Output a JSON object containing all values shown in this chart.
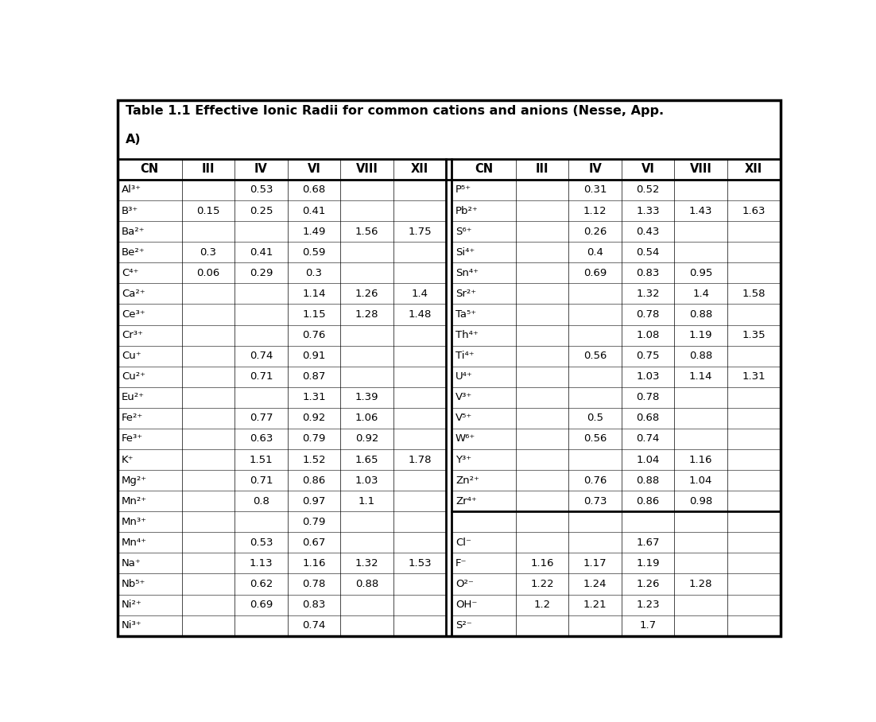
{
  "title_line1": "Table 1.1 Effective Ionic Radii for common cations and anions (Nesse, App.",
  "title_line2": "A)",
  "left_headers": [
    "CN",
    "III",
    "IV",
    "VI",
    "VIII",
    "XII"
  ],
  "right_headers": [
    "CN",
    "III",
    "IV",
    "VI",
    "VIII",
    "XII"
  ],
  "left_data": [
    [
      "Al³⁺",
      "",
      "0.53",
      "0.68",
      "",
      ""
    ],
    [
      "B³⁺",
      "0.15",
      "0.25",
      "0.41",
      "",
      ""
    ],
    [
      "Ba²⁺",
      "",
      "",
      "1.49",
      "1.56",
      "1.75"
    ],
    [
      "Be²⁺",
      "0.3",
      "0.41",
      "0.59",
      "",
      ""
    ],
    [
      "C⁴⁺",
      "0.06",
      "0.29",
      "0.3",
      "",
      ""
    ],
    [
      "Ca²⁺",
      "",
      "",
      "1.14",
      "1.26",
      "1.4"
    ],
    [
      "Ce³⁺",
      "",
      "",
      "1.15",
      "1.28",
      "1.48"
    ],
    [
      "Cr³⁺",
      "",
      "",
      "0.76",
      "",
      ""
    ],
    [
      "Cu⁺",
      "",
      "0.74",
      "0.91",
      "",
      ""
    ],
    [
      "Cu²⁺",
      "",
      "0.71",
      "0.87",
      "",
      ""
    ],
    [
      "Eu²⁺",
      "",
      "",
      "1.31",
      "1.39",
      ""
    ],
    [
      "Fe²⁺",
      "",
      "0.77",
      "0.92",
      "1.06",
      ""
    ],
    [
      "Fe³⁺",
      "",
      "0.63",
      "0.79",
      "0.92",
      ""
    ],
    [
      "K⁺",
      "",
      "1.51",
      "1.52",
      "1.65",
      "1.78"
    ],
    [
      "Mg²⁺",
      "",
      "0.71",
      "0.86",
      "1.03",
      ""
    ],
    [
      "Mn²⁺",
      "",
      "0.8",
      "0.97",
      "1.1",
      ""
    ],
    [
      "Mn³⁺",
      "",
      "",
      "0.79",
      "",
      ""
    ],
    [
      "Mn⁴⁺",
      "",
      "0.53",
      "0.67",
      "",
      ""
    ],
    [
      "Na⁺",
      "",
      "1.13",
      "1.16",
      "1.32",
      "1.53"
    ],
    [
      "Nb⁵⁺",
      "",
      "0.62",
      "0.78",
      "0.88",
      ""
    ],
    [
      "Ni²⁺",
      "",
      "0.69",
      "0.83",
      "",
      ""
    ],
    [
      "Ni³⁺",
      "",
      "",
      "0.74",
      "",
      ""
    ]
  ],
  "right_data": [
    [
      "P⁵⁺",
      "",
      "0.31",
      "0.52",
      "",
      ""
    ],
    [
      "Pb²⁺",
      "",
      "1.12",
      "1.33",
      "1.43",
      "1.63"
    ],
    [
      "S⁶⁺",
      "",
      "0.26",
      "0.43",
      "",
      ""
    ],
    [
      "Si⁴⁺",
      "",
      "0.4",
      "0.54",
      "",
      ""
    ],
    [
      "Sn⁴⁺",
      "",
      "0.69",
      "0.83",
      "0.95",
      ""
    ],
    [
      "Sr²⁺",
      "",
      "",
      "1.32",
      "1.4",
      "1.58"
    ],
    [
      "Ta⁵⁺",
      "",
      "",
      "0.78",
      "0.88",
      ""
    ],
    [
      "Th⁴⁺",
      "",
      "",
      "1.08",
      "1.19",
      "1.35"
    ],
    [
      "Ti⁴⁺",
      "",
      "0.56",
      "0.75",
      "0.88",
      ""
    ],
    [
      "U⁴⁺",
      "",
      "",
      "1.03",
      "1.14",
      "1.31"
    ],
    [
      "V³⁺",
      "",
      "",
      "0.78",
      "",
      ""
    ],
    [
      "V⁵⁺",
      "",
      "0.5",
      "0.68",
      "",
      ""
    ],
    [
      "W⁶⁺",
      "",
      "0.56",
      "0.74",
      "",
      ""
    ],
    [
      "Y³⁺",
      "",
      "",
      "1.04",
      "1.16",
      ""
    ],
    [
      "Zn²⁺",
      "",
      "0.76",
      "0.88",
      "1.04",
      ""
    ],
    [
      "Zr⁴⁺",
      "",
      "0.73",
      "0.86",
      "0.98",
      ""
    ]
  ],
  "anion_data": [
    [
      "Cl⁻",
      "",
      "",
      "1.67",
      "",
      ""
    ],
    [
      "F⁻",
      "1.16",
      "1.17",
      "1.19",
      "",
      ""
    ],
    [
      "O²⁻",
      "1.22",
      "1.24",
      "1.26",
      "1.28",
      ""
    ],
    [
      "OH⁻",
      "1.2",
      "1.21",
      "1.23",
      "",
      ""
    ],
    [
      "S²⁻",
      "",
      "",
      "1.7",
      "",
      ""
    ]
  ],
  "bg_color": "#ffffff",
  "border_color": "#000000",
  "text_color": "#000000"
}
